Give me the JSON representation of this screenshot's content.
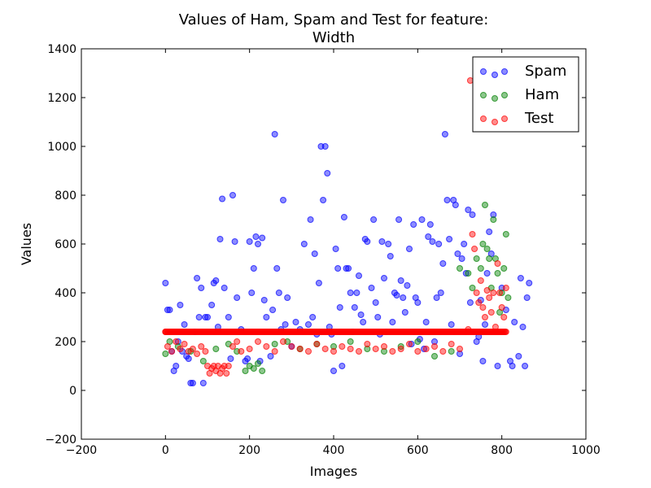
{
  "chart_data": {
    "type": "scatter",
    "title_line1": "Values of Ham, Spam and Test for feature:",
    "title_line2": "Width",
    "xlabel": "Images",
    "ylabel": "Values",
    "xlim": [
      -200,
      1000
    ],
    "ylim": [
      -200,
      1400
    ],
    "xticks": [
      "−200",
      "0",
      "200",
      "400",
      "600",
      "800",
      "1000"
    ],
    "yticks": [
      "−200",
      "0",
      "200",
      "400",
      "600",
      "800",
      "1000",
      "1200",
      "1400"
    ],
    "grid": false,
    "legend_position": "top-right",
    "series": [
      {
        "name": "Spam",
        "color": "#0000ff",
        "points": [
          [
            0,
            440
          ],
          [
            5,
            330
          ],
          [
            10,
            330
          ],
          [
            15,
            160
          ],
          [
            20,
            80
          ],
          [
            25,
            100
          ],
          [
            30,
            200
          ],
          [
            35,
            350
          ],
          [
            40,
            160
          ],
          [
            45,
            270
          ],
          [
            50,
            140
          ],
          [
            55,
            130
          ],
          [
            60,
            30
          ],
          [
            65,
            30
          ],
          [
            70,
            240
          ],
          [
            75,
            460
          ],
          [
            80,
            300
          ],
          [
            85,
            420
          ],
          [
            90,
            30
          ],
          [
            95,
            300
          ],
          [
            100,
            300
          ],
          [
            110,
            350
          ],
          [
            115,
            440
          ],
          [
            120,
            450
          ],
          [
            125,
            260
          ],
          [
            130,
            620
          ],
          [
            135,
            785
          ],
          [
            140,
            420
          ],
          [
            150,
            300
          ],
          [
            155,
            130
          ],
          [
            160,
            800
          ],
          [
            165,
            610
          ],
          [
            170,
            380
          ],
          [
            180,
            250
          ],
          [
            190,
            120
          ],
          [
            195,
            130
          ],
          [
            200,
            610
          ],
          [
            205,
            400
          ],
          [
            210,
            500
          ],
          [
            215,
            630
          ],
          [
            220,
            600
          ],
          [
            225,
            120
          ],
          [
            230,
            625
          ],
          [
            235,
            370
          ],
          [
            240,
            300
          ],
          [
            250,
            140
          ],
          [
            255,
            330
          ],
          [
            260,
            1050
          ],
          [
            265,
            500
          ],
          [
            270,
            400
          ],
          [
            275,
            250
          ],
          [
            280,
            780
          ],
          [
            285,
            270
          ],
          [
            290,
            380
          ],
          [
            300,
            180
          ],
          [
            310,
            280
          ],
          [
            320,
            250
          ],
          [
            330,
            600
          ],
          [
            340,
            270
          ],
          [
            345,
            700
          ],
          [
            350,
            300
          ],
          [
            355,
            560
          ],
          [
            360,
            230
          ],
          [
            365,
            440
          ],
          [
            370,
            1000
          ],
          [
            375,
            780
          ],
          [
            380,
            1000
          ],
          [
            385,
            890
          ],
          [
            390,
            260
          ],
          [
            395,
            230
          ],
          [
            400,
            80
          ],
          [
            405,
            580
          ],
          [
            410,
            500
          ],
          [
            415,
            340
          ],
          [
            420,
            100
          ],
          [
            425,
            710
          ],
          [
            430,
            500
          ],
          [
            435,
            500
          ],
          [
            440,
            400
          ],
          [
            445,
            240
          ],
          [
            450,
            340
          ],
          [
            455,
            400
          ],
          [
            460,
            470
          ],
          [
            465,
            310
          ],
          [
            470,
            280
          ],
          [
            475,
            620
          ],
          [
            480,
            610
          ],
          [
            490,
            420
          ],
          [
            495,
            700
          ],
          [
            500,
            360
          ],
          [
            505,
            300
          ],
          [
            510,
            230
          ],
          [
            515,
            610
          ],
          [
            520,
            460
          ],
          [
            525,
            240
          ],
          [
            530,
            600
          ],
          [
            535,
            550
          ],
          [
            540,
            280
          ],
          [
            545,
            400
          ],
          [
            550,
            390
          ],
          [
            555,
            700
          ],
          [
            560,
            450
          ],
          [
            565,
            380
          ],
          [
            570,
            320
          ],
          [
            575,
            430
          ],
          [
            580,
            580
          ],
          [
            585,
            190
          ],
          [
            590,
            680
          ],
          [
            595,
            380
          ],
          [
            600,
            360
          ],
          [
            605,
            210
          ],
          [
            610,
            700
          ],
          [
            615,
            170
          ],
          [
            620,
            280
          ],
          [
            625,
            630
          ],
          [
            630,
            680
          ],
          [
            635,
            610
          ],
          [
            640,
            200
          ],
          [
            645,
            380
          ],
          [
            650,
            600
          ],
          [
            655,
            400
          ],
          [
            660,
            520
          ],
          [
            665,
            1050
          ],
          [
            670,
            780
          ],
          [
            675,
            620
          ],
          [
            680,
            270
          ],
          [
            685,
            780
          ],
          [
            690,
            760
          ],
          [
            695,
            560
          ],
          [
            700,
            150
          ],
          [
            705,
            540
          ],
          [
            710,
            600
          ],
          [
            715,
            480
          ],
          [
            720,
            740
          ],
          [
            725,
            360
          ],
          [
            730,
            720
          ],
          [
            740,
            200
          ],
          [
            745,
            220
          ],
          [
            750,
            370
          ],
          [
            755,
            120
          ],
          [
            760,
            270
          ],
          [
            765,
            480
          ],
          [
            770,
            650
          ],
          [
            775,
            560
          ],
          [
            780,
            720
          ],
          [
            790,
            100
          ],
          [
            800,
            420
          ],
          [
            810,
            330
          ],
          [
            820,
            120
          ],
          [
            825,
            100
          ],
          [
            830,
            280
          ],
          [
            840,
            140
          ],
          [
            845,
            460
          ],
          [
            850,
            260
          ],
          [
            855,
            100
          ],
          [
            860,
            380
          ],
          [
            865,
            440
          ]
        ]
      },
      {
        "name": "Ham",
        "color": "#008000",
        "points": [
          [
            0,
            150
          ],
          [
            10,
            200
          ],
          [
            30,
            180
          ],
          [
            60,
            160
          ],
          [
            90,
            120
          ],
          [
            120,
            170
          ],
          [
            150,
            190
          ],
          [
            170,
            160
          ],
          [
            190,
            80
          ],
          [
            200,
            100
          ],
          [
            210,
            90
          ],
          [
            220,
            110
          ],
          [
            230,
            80
          ],
          [
            260,
            190
          ],
          [
            290,
            200
          ],
          [
            320,
            170
          ],
          [
            360,
            190
          ],
          [
            400,
            180
          ],
          [
            440,
            200
          ],
          [
            480,
            170
          ],
          [
            520,
            160
          ],
          [
            560,
            180
          ],
          [
            600,
            200
          ],
          [
            640,
            140
          ],
          [
            680,
            160
          ],
          [
            700,
            500
          ],
          [
            720,
            480
          ],
          [
            730,
            420
          ],
          [
            740,
            540
          ],
          [
            750,
            500
          ],
          [
            755,
            600
          ],
          [
            760,
            760
          ],
          [
            765,
            580
          ],
          [
            770,
            540
          ],
          [
            775,
            420
          ],
          [
            780,
            700
          ],
          [
            785,
            540
          ],
          [
            790,
            480
          ],
          [
            795,
            320
          ],
          [
            800,
            400
          ],
          [
            805,
            500
          ],
          [
            810,
            640
          ],
          [
            815,
            380
          ]
        ]
      },
      {
        "name": "Test",
        "color": "#ff0000",
        "points": [
          [
            0,
            240
          ],
          [
            5,
            180
          ],
          [
            15,
            160
          ],
          [
            25,
            200
          ],
          [
            35,
            170
          ],
          [
            45,
            190
          ],
          [
            55,
            160
          ],
          [
            65,
            170
          ],
          [
            75,
            150
          ],
          [
            85,
            180
          ],
          [
            95,
            160
          ],
          [
            100,
            100
          ],
          [
            105,
            70
          ],
          [
            110,
            90
          ],
          [
            115,
            100
          ],
          [
            120,
            80
          ],
          [
            125,
            100
          ],
          [
            130,
            70
          ],
          [
            135,
            90
          ],
          [
            140,
            100
          ],
          [
            145,
            70
          ],
          [
            150,
            100
          ],
          [
            160,
            180
          ],
          [
            170,
            200
          ],
          [
            180,
            160
          ],
          [
            200,
            170
          ],
          [
            220,
            200
          ],
          [
            240,
            180
          ],
          [
            260,
            160
          ],
          [
            280,
            200
          ],
          [
            300,
            180
          ],
          [
            320,
            170
          ],
          [
            340,
            160
          ],
          [
            360,
            190
          ],
          [
            380,
            170
          ],
          [
            400,
            160
          ],
          [
            420,
            180
          ],
          [
            440,
            170
          ],
          [
            460,
            160
          ],
          [
            480,
            190
          ],
          [
            500,
            170
          ],
          [
            520,
            180
          ],
          [
            540,
            160
          ],
          [
            560,
            170
          ],
          [
            580,
            190
          ],
          [
            600,
            160
          ],
          [
            620,
            170
          ],
          [
            640,
            180
          ],
          [
            660,
            160
          ],
          [
            680,
            190
          ],
          [
            700,
            170
          ],
          [
            720,
            250
          ],
          [
            725,
            1270
          ],
          [
            730,
            640
          ],
          [
            735,
            580
          ],
          [
            740,
            400
          ],
          [
            745,
            360
          ],
          [
            750,
            450
          ],
          [
            755,
            340
          ],
          [
            760,
            300
          ],
          [
            765,
            410
          ],
          [
            770,
            380
          ],
          [
            775,
            320
          ],
          [
            780,
            400
          ],
          [
            785,
            260
          ],
          [
            790,
            520
          ],
          [
            795,
            400
          ],
          [
            800,
            340
          ],
          [
            805,
            300
          ],
          [
            810,
            420
          ]
        ]
      }
    ],
    "test_baseline": {
      "y": 240,
      "x_start": 0,
      "x_end": 810
    }
  }
}
